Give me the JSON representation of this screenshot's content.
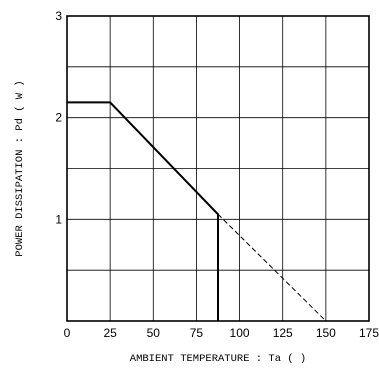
{
  "chart_data": {
    "type": "line",
    "title": "",
    "xlabel": "AMBIENT TEMPERATURE : Ta (  )",
    "ylabel": "POWER DISSIPATION : Pd ( W )",
    "xlim": [
      0,
      175
    ],
    "ylim": [
      0,
      3
    ],
    "xticks": [
      0,
      25,
      50,
      75,
      100,
      125,
      150,
      175
    ],
    "yticks": [
      1,
      2,
      3
    ],
    "grid": true,
    "series": [
      {
        "style": "solid",
        "x": [
          0,
          25,
          87.5,
          87.5
        ],
        "y": [
          2.15,
          2.15,
          1.05,
          0
        ]
      },
      {
        "style": "dashed",
        "x": [
          87.5,
          150
        ],
        "y": [
          1.05,
          0
        ]
      }
    ]
  }
}
